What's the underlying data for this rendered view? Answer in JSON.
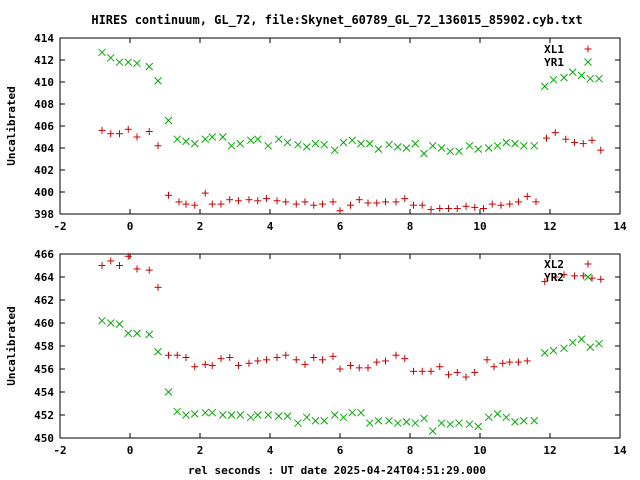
{
  "chart_data": [
    {
      "type": "scatter",
      "title": "HIRES continuum, GL_72, file:Skynet_60789_GL_72_136015_85902.cyb.txt",
      "ylabel": "Uncalibrated",
      "xlabel": "",
      "xlim": [
        -2,
        14
      ],
      "ylim": [
        398,
        414
      ],
      "xticks": [
        -2,
        0,
        2,
        4,
        6,
        8,
        10,
        12,
        14
      ],
      "yticks": [
        398,
        400,
        402,
        404,
        406,
        408,
        410,
        412,
        414
      ],
      "legend_position": "top-right",
      "grid": false,
      "series": [
        {
          "name": "XL1",
          "marker": "+",
          "color": "#cc0000",
          "points": [
            [
              -0.8,
              405.6
            ],
            [
              -0.55,
              405.3
            ],
            [
              -0.3,
              405.3
            ],
            [
              -0.05,
              405.7
            ],
            [
              0.2,
              405.0
            ],
            [
              0.55,
              405.5
            ],
            [
              0.8,
              404.2
            ],
            [
              1.1,
              399.7
            ],
            [
              1.4,
              399.1
            ],
            [
              1.6,
              398.9
            ],
            [
              1.85,
              398.8
            ],
            [
              2.15,
              399.9
            ],
            [
              2.35,
              398.9
            ],
            [
              2.6,
              398.9
            ],
            [
              2.85,
              399.3
            ],
            [
              3.1,
              399.2
            ],
            [
              3.4,
              399.3
            ],
            [
              3.65,
              399.2
            ],
            [
              3.9,
              399.4
            ],
            [
              4.2,
              399.2
            ],
            [
              4.45,
              399.1
            ],
            [
              4.75,
              398.9
            ],
            [
              5.0,
              399.1
            ],
            [
              5.25,
              398.8
            ],
            [
              5.5,
              398.9
            ],
            [
              5.8,
              399.1
            ],
            [
              6.0,
              398.3
            ],
            [
              6.3,
              398.8
            ],
            [
              6.55,
              399.3
            ],
            [
              6.8,
              399.0
            ],
            [
              7.05,
              399.0
            ],
            [
              7.3,
              399.1
            ],
            [
              7.6,
              399.1
            ],
            [
              7.85,
              399.4
            ],
            [
              8.1,
              398.8
            ],
            [
              8.35,
              398.8
            ],
            [
              8.6,
              398.4
            ],
            [
              8.85,
              398.5
            ],
            [
              9.1,
              398.5
            ],
            [
              9.35,
              398.5
            ],
            [
              9.6,
              398.7
            ],
            [
              9.85,
              398.6
            ],
            [
              10.1,
              398.5
            ],
            [
              10.35,
              398.9
            ],
            [
              10.6,
              398.8
            ],
            [
              10.85,
              398.9
            ],
            [
              11.1,
              399.1
            ],
            [
              11.35,
              399.6
            ],
            [
              11.6,
              399.1
            ],
            [
              11.9,
              404.9
            ],
            [
              12.15,
              405.4
            ],
            [
              12.45,
              404.8
            ],
            [
              12.7,
              404.5
            ],
            [
              12.95,
              404.4
            ],
            [
              13.2,
              404.7
            ],
            [
              13.45,
              403.8
            ]
          ]
        },
        {
          "name": "YR1",
          "marker": "x",
          "color": "#00aa00",
          "points": [
            [
              -0.8,
              412.7
            ],
            [
              -0.55,
              412.2
            ],
            [
              -0.3,
              411.8
            ],
            [
              -0.05,
              411.8
            ],
            [
              0.2,
              411.7
            ],
            [
              0.55,
              411.4
            ],
            [
              0.8,
              410.1
            ],
            [
              1.1,
              406.5
            ],
            [
              1.35,
              404.8
            ],
            [
              1.6,
              404.6
            ],
            [
              1.85,
              404.4
            ],
            [
              2.15,
              404.8
            ],
            [
              2.35,
              405.0
            ],
            [
              2.65,
              405.0
            ],
            [
              2.9,
              404.2
            ],
            [
              3.15,
              404.4
            ],
            [
              3.45,
              404.7
            ],
            [
              3.65,
              404.8
            ],
            [
              3.95,
              404.2
            ],
            [
              4.25,
              404.8
            ],
            [
              4.5,
              404.5
            ],
            [
              4.8,
              404.3
            ],
            [
              5.05,
              404.1
            ],
            [
              5.3,
              404.4
            ],
            [
              5.55,
              404.3
            ],
            [
              5.85,
              403.8
            ],
            [
              6.1,
              404.5
            ],
            [
              6.35,
              404.7
            ],
            [
              6.6,
              404.4
            ],
            [
              6.85,
              404.4
            ],
            [
              7.1,
              403.9
            ],
            [
              7.4,
              404.3
            ],
            [
              7.65,
              404.1
            ],
            [
              7.9,
              404.0
            ],
            [
              8.15,
              404.4
            ],
            [
              8.4,
              403.5
            ],
            [
              8.65,
              404.2
            ],
            [
              8.9,
              404.0
            ],
            [
              9.15,
              403.7
            ],
            [
              9.4,
              403.7
            ],
            [
              9.7,
              404.2
            ],
            [
              9.95,
              403.9
            ],
            [
              10.25,
              404.0
            ],
            [
              10.5,
              404.2
            ],
            [
              10.75,
              404.5
            ],
            [
              11.0,
              404.4
            ],
            [
              11.25,
              404.2
            ],
            [
              11.55,
              404.2
            ],
            [
              11.85,
              409.6
            ],
            [
              12.1,
              410.2
            ],
            [
              12.4,
              410.4
            ],
            [
              12.65,
              410.9
            ],
            [
              12.9,
              410.6
            ],
            [
              13.15,
              410.3
            ],
            [
              13.4,
              410.3
            ]
          ]
        }
      ]
    },
    {
      "type": "scatter",
      "title": "",
      "ylabel": "Uncalibrated",
      "xlabel": "rel seconds : UT date 2025-04-24T04:51:29.000",
      "xlim": [
        -2,
        14
      ],
      "ylim": [
        450,
        466
      ],
      "xticks": [
        -2,
        0,
        2,
        4,
        6,
        8,
        10,
        12,
        14
      ],
      "yticks": [
        450,
        452,
        454,
        456,
        458,
        460,
        462,
        464,
        466
      ],
      "legend_position": "top-right",
      "grid": false,
      "series": [
        {
          "name": "XL2",
          "marker": "+",
          "color": "#cc0000",
          "points": [
            [
              -0.8,
              465.0
            ],
            [
              -0.55,
              465.4
            ],
            [
              -0.3,
              465.0
            ],
            [
              -0.05,
              465.8
            ],
            [
              0.2,
              464.7
            ],
            [
              0.55,
              464.6
            ],
            [
              0.8,
              463.1
            ],
            [
              1.1,
              457.2
            ],
            [
              1.35,
              457.2
            ],
            [
              1.6,
              457.0
            ],
            [
              1.85,
              456.2
            ],
            [
              2.15,
              456.4
            ],
            [
              2.35,
              456.3
            ],
            [
              2.6,
              456.9
            ],
            [
              2.85,
              457.0
            ],
            [
              3.1,
              456.3
            ],
            [
              3.4,
              456.5
            ],
            [
              3.65,
              456.7
            ],
            [
              3.9,
              456.8
            ],
            [
              4.2,
              457.0
            ],
            [
              4.45,
              457.2
            ],
            [
              4.75,
              456.8
            ],
            [
              5.0,
              456.4
            ],
            [
              5.25,
              457.0
            ],
            [
              5.5,
              456.8
            ],
            [
              5.8,
              457.1
            ],
            [
              6.0,
              456.0
            ],
            [
              6.3,
              456.3
            ],
            [
              6.55,
              456.1
            ],
            [
              6.8,
              456.1
            ],
            [
              7.05,
              456.6
            ],
            [
              7.3,
              456.7
            ],
            [
              7.6,
              457.2
            ],
            [
              7.85,
              456.9
            ],
            [
              8.1,
              455.8
            ],
            [
              8.35,
              455.8
            ],
            [
              8.6,
              455.8
            ],
            [
              8.85,
              456.2
            ],
            [
              9.1,
              455.5
            ],
            [
              9.35,
              455.7
            ],
            [
              9.6,
              455.3
            ],
            [
              9.85,
              455.7
            ],
            [
              10.2,
              456.8
            ],
            [
              10.4,
              456.2
            ],
            [
              10.65,
              456.5
            ],
            [
              10.85,
              456.6
            ],
            [
              11.1,
              456.6
            ],
            [
              11.35,
              456.7
            ],
            [
              11.85,
              463.6
            ],
            [
              12.15,
              464.0
            ],
            [
              12.4,
              464.2
            ],
            [
              12.7,
              464.1
            ],
            [
              12.95,
              464.1
            ],
            [
              13.2,
              463.9
            ],
            [
              13.45,
              463.8
            ]
          ]
        },
        {
          "name": "YR2",
          "marker": "x",
          "color": "#00aa00",
          "points": [
            [
              -0.8,
              460.2
            ],
            [
              -0.55,
              460.0
            ],
            [
              -0.3,
              459.9
            ],
            [
              -0.05,
              459.1
            ],
            [
              0.2,
              459.1
            ],
            [
              0.55,
              459.0
            ],
            [
              0.8,
              457.5
            ],
            [
              1.1,
              454.0
            ],
            [
              1.35,
              452.3
            ],
            [
              1.6,
              452.0
            ],
            [
              1.85,
              452.1
            ],
            [
              2.15,
              452.2
            ],
            [
              2.35,
              452.2
            ],
            [
              2.65,
              452.0
            ],
            [
              2.9,
              452.0
            ],
            [
              3.15,
              452.0
            ],
            [
              3.45,
              451.8
            ],
            [
              3.65,
              452.0
            ],
            [
              3.95,
              452.0
            ],
            [
              4.25,
              451.9
            ],
            [
              4.5,
              451.9
            ],
            [
              4.8,
              451.3
            ],
            [
              5.05,
              451.8
            ],
            [
              5.3,
              451.5
            ],
            [
              5.55,
              451.5
            ],
            [
              5.85,
              452.0
            ],
            [
              6.1,
              451.8
            ],
            [
              6.35,
              452.2
            ],
            [
              6.6,
              452.2
            ],
            [
              6.85,
              451.3
            ],
            [
              7.1,
              451.5
            ],
            [
              7.4,
              451.5
            ],
            [
              7.65,
              451.3
            ],
            [
              7.9,
              451.4
            ],
            [
              8.15,
              451.3
            ],
            [
              8.4,
              451.7
            ],
            [
              8.65,
              450.6
            ],
            [
              8.9,
              451.3
            ],
            [
              9.15,
              451.2
            ],
            [
              9.4,
              451.3
            ],
            [
              9.7,
              451.2
            ],
            [
              9.95,
              451.0
            ],
            [
              10.25,
              451.8
            ],
            [
              10.5,
              452.1
            ],
            [
              10.75,
              451.8
            ],
            [
              11.0,
              451.4
            ],
            [
              11.25,
              451.5
            ],
            [
              11.55,
              451.5
            ],
            [
              11.85,
              457.4
            ],
            [
              12.1,
              457.6
            ],
            [
              12.4,
              457.8
            ],
            [
              12.65,
              458.3
            ],
            [
              12.9,
              458.6
            ],
            [
              13.15,
              457.9
            ],
            [
              13.4,
              458.2
            ]
          ]
        }
      ]
    }
  ]
}
